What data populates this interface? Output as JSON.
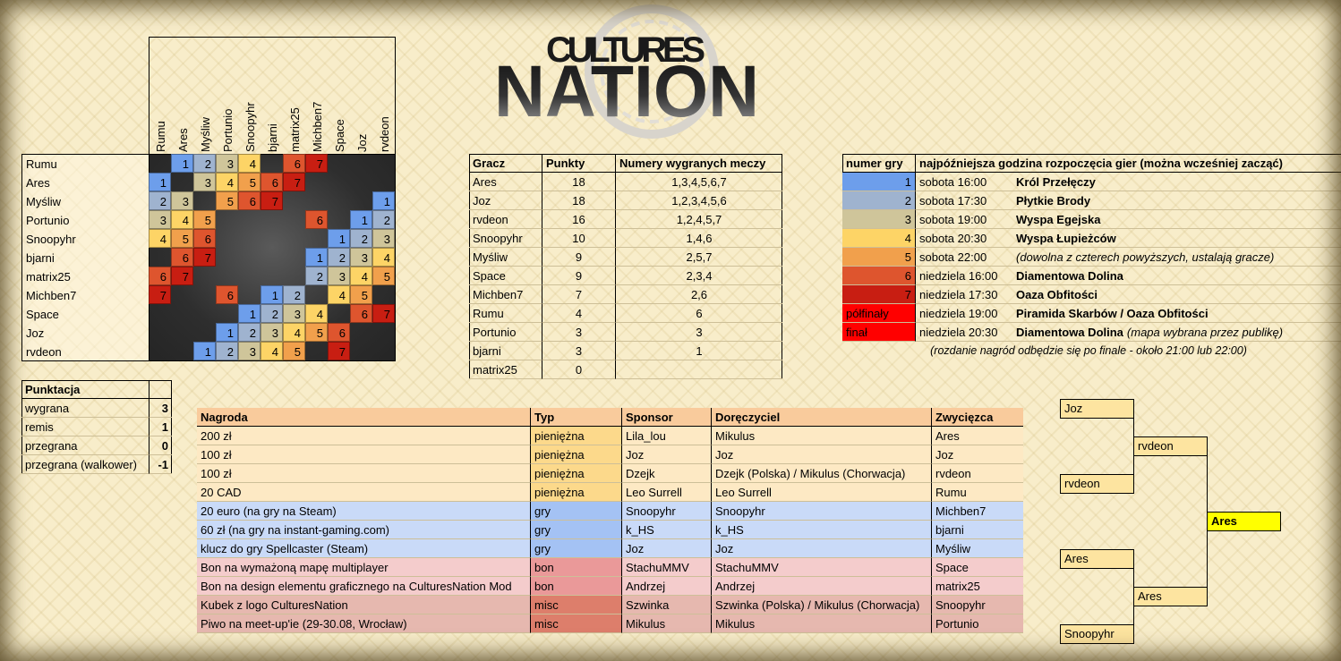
{
  "logo": {
    "top": "CULTURES",
    "bottom": "NATION"
  },
  "matrix": {
    "players": [
      "Rumu",
      "Ares",
      "Myśliw",
      "Portunio",
      "Snoopyhr",
      "bjarni",
      "matrix25",
      "Michben7",
      "Space",
      "Joz",
      "rvdeon"
    ],
    "cells": [
      [
        null,
        1,
        2,
        3,
        4,
        null,
        6,
        7,
        null,
        null,
        null
      ],
      [
        1,
        null,
        3,
        4,
        5,
        6,
        7,
        null,
        null,
        null,
        null
      ],
      [
        2,
        3,
        null,
        5,
        6,
        7,
        null,
        null,
        null,
        null,
        1
      ],
      [
        3,
        4,
        5,
        null,
        null,
        null,
        null,
        6,
        null,
        1,
        2
      ],
      [
        4,
        5,
        6,
        null,
        null,
        null,
        null,
        null,
        1,
        2,
        3
      ],
      [
        null,
        6,
        7,
        null,
        null,
        null,
        null,
        1,
        2,
        3,
        4
      ],
      [
        6,
        7,
        null,
        null,
        null,
        null,
        null,
        2,
        3,
        4,
        5
      ],
      [
        7,
        null,
        null,
        6,
        null,
        1,
        2,
        null,
        4,
        5,
        null
      ],
      [
        null,
        null,
        null,
        null,
        1,
        2,
        3,
        4,
        null,
        6,
        7
      ],
      [
        null,
        null,
        null,
        1,
        2,
        3,
        4,
        5,
        6,
        null,
        null
      ],
      [
        null,
        null,
        1,
        2,
        3,
        4,
        5,
        null,
        7,
        null,
        null
      ]
    ]
  },
  "standings": {
    "columns": [
      "Gracz",
      "Punkty",
      "Numery wygranych meczy"
    ],
    "rows": [
      {
        "player": "Ares",
        "points": 18,
        "wins": "1,3,4,5,6,7"
      },
      {
        "player": "Joz",
        "points": 18,
        "wins": "1,2,3,4,5,6"
      },
      {
        "player": "rvdeon",
        "points": 16,
        "wins": "1,2,4,5,7"
      },
      {
        "player": "Snoopyhr",
        "points": 10,
        "wins": "1,4,6"
      },
      {
        "player": "Myśliw",
        "points": 9,
        "wins": "2,5,7"
      },
      {
        "player": "Space",
        "points": 9,
        "wins": "2,3,4"
      },
      {
        "player": "Michben7",
        "points": 7,
        "wins": "2,6"
      },
      {
        "player": "Rumu",
        "points": 4,
        "wins": "6"
      },
      {
        "player": "Portunio",
        "points": 3,
        "wins": "3"
      },
      {
        "player": "bjarni",
        "points": 3,
        "wins": "1"
      },
      {
        "player": "matrix25",
        "points": 0
      }
    ]
  },
  "schedule": {
    "columns": [
      "numer gry",
      "najpóźniejsza godzina rozpoczęcia gier (można wcześniej zacząć)"
    ],
    "rows": [
      {
        "game": 1,
        "color": "#6d9eeb",
        "time": "sobota 16:00",
        "map": "Król Przełęczy"
      },
      {
        "game": 2,
        "color": "#9fb3cf",
        "time": "sobota 17:30",
        "map": "Płytkie Brody"
      },
      {
        "game": 3,
        "color": "#cfc59a",
        "time": "sobota 19:00",
        "map": "Wyspa Egejska"
      },
      {
        "game": 4,
        "color": "#fdd466",
        "time": "sobota 20:30",
        "map": "Wyspa Łupieżców"
      },
      {
        "game": 5,
        "color": "#f1a04c",
        "time": "sobota 22:00",
        "note": "(dowolna z czterech powyższych, ustalają gracze)"
      },
      {
        "game": 6,
        "color": "#de552e",
        "time": "niedziela 16:00",
        "map": "Diamentowa Dolina"
      },
      {
        "game": 7,
        "color": "#c81e12",
        "time": "niedziela 17:30",
        "map": "Oaza Obfitości"
      },
      {
        "game": "półfinały",
        "color": "#ff0000",
        "time": "niedziela 19:00",
        "map": "Piramida Skarbów / Oaza Obfitości"
      },
      {
        "game": "finał",
        "color": "#ff0000",
        "time": "niedziela 20:30",
        "map": "Diamentowa Dolina",
        "note": "(mapa wybrana przez publikę)"
      }
    ],
    "footnote": "(rozdanie nagród odbędzie się po finale - około 21:00 lub 22:00)"
  },
  "scoring": {
    "title": "Punktacja",
    "rows": [
      [
        "wygrana",
        3
      ],
      [
        "remis",
        1
      ],
      [
        "przegrana",
        0
      ],
      [
        "przegrana (walkower)",
        -1
      ]
    ]
  },
  "prizes": {
    "columns": [
      "Nagroda",
      "Typ",
      "Sponsor",
      "Doręczyciel",
      "Zwycięzca"
    ],
    "rows": [
      {
        "cells": [
          "200 zł",
          "pieniężna",
          "Lila_lou",
          "Mikulus",
          "Ares"
        ],
        "color": "#fde9c4",
        "type_color": "#fcd98b"
      },
      {
        "cells": [
          "100 zł",
          "pieniężna",
          "Joz",
          "Joz",
          "Joz"
        ],
        "color": "#fde9c4",
        "type_color": "#fcd98b"
      },
      {
        "cells": [
          "100 zł",
          "pieniężna",
          "Dzejk",
          "Dzejk (Polska) / Mikulus (Chorwacja)",
          "rvdeon"
        ],
        "color": "#fde9c4",
        "type_color": "#fcd98b"
      },
      {
        "cells": [
          "20 CAD",
          "pieniężna",
          "Leo Surrell",
          "Leo Surrell",
          "Rumu"
        ],
        "color": "#fde9c4",
        "type_color": "#fcd98b"
      },
      {
        "cells": [
          "20 euro (na gry na Steam)",
          "gry",
          "Snoopyhr",
          "Snoopyhr",
          "Michben7"
        ],
        "color": "#c9daf8",
        "type_color": "#a4c2f4"
      },
      {
        "cells": [
          "60 zł (na gry na instant-gaming.com)",
          "gry",
          "k_HS",
          "k_HS",
          "bjarni"
        ],
        "color": "#c9daf8",
        "type_color": "#a4c2f4"
      },
      {
        "cells": [
          "klucz do gry Spellcaster (Steam)",
          "gry",
          "Joz",
          "Joz",
          "Myśliw"
        ],
        "color": "#c9daf8",
        "type_color": "#a4c2f4"
      },
      {
        "cells": [
          "Bon na wymażoną mapę multiplayer",
          "bon",
          "StachuMMV",
          "StachuMMV",
          "Space"
        ],
        "color": "#f4cccc",
        "type_color": "#ea9999"
      },
      {
        "cells": [
          "Bon na design elementu graficznego na CulturesNation Mod",
          "bon",
          "Andrzej",
          "Andrzej",
          "matrix25"
        ],
        "color": "#f4cccc",
        "type_color": "#ea9999"
      },
      {
        "cells": [
          "Kubek z logo CulturesNation",
          "misc",
          "Szwinka",
          "Szwinka (Polska) / Mikulus (Chorwacja)",
          "Snoopyhr"
        ],
        "color": "#e6b8af",
        "type_color": "#dd7e6b"
      },
      {
        "cells": [
          "Piwo na meet-up'ie (29-30.08, Wrocław)",
          "misc",
          "Mikulus",
          "Mikulus",
          "Portunio"
        ],
        "color": "#e6b8af",
        "type_color": "#dd7e6b"
      }
    ]
  },
  "bracket": {
    "semifinal_1": [
      "Joz",
      "rvdeon"
    ],
    "semifinal_2": [
      "Ares",
      "Snoopyhr"
    ],
    "final": [
      "rvdeon",
      "Ares"
    ],
    "winner": "Ares"
  }
}
